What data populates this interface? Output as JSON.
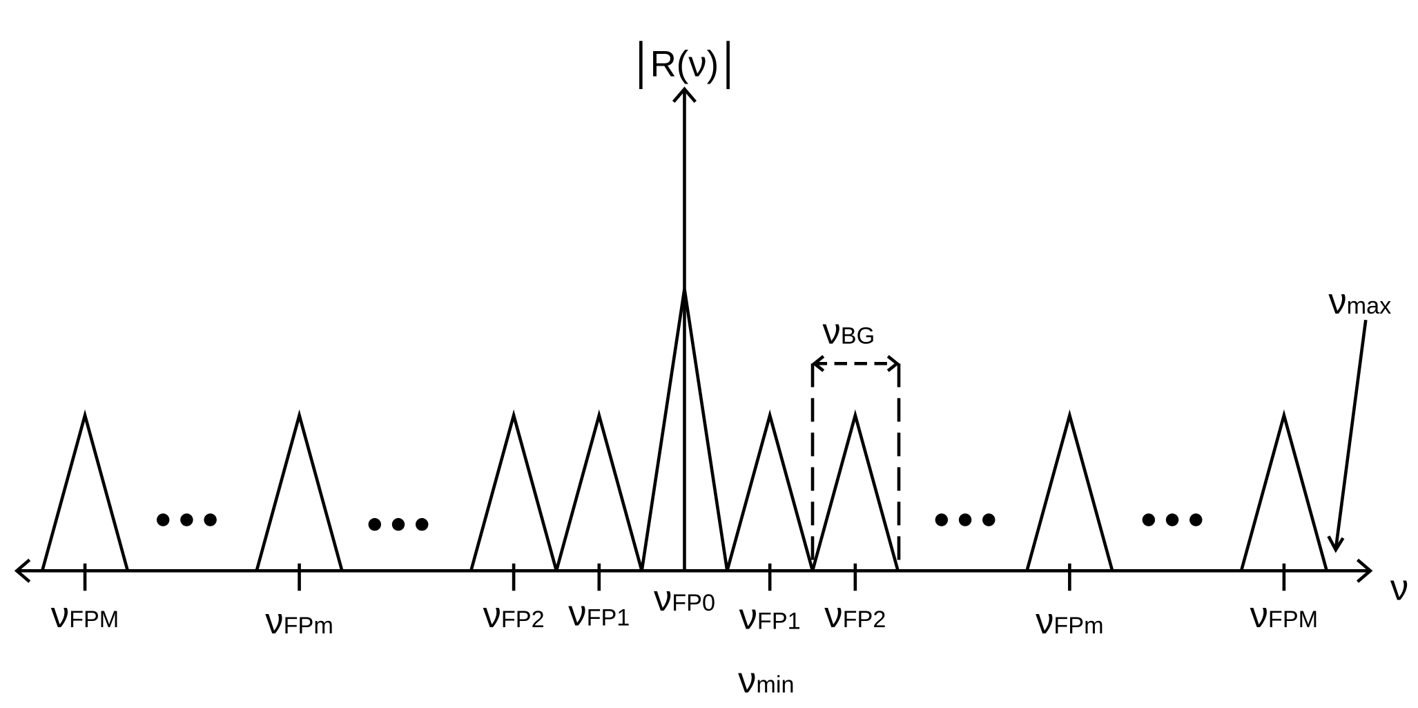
{
  "axis_y_label": "R(ν)",
  "axis_x_label": "ν",
  "peaks": [
    {
      "symbol": "ν",
      "sub": "FPM"
    },
    {
      "symbol": "ν",
      "sub": "FPm"
    },
    {
      "symbol": "ν",
      "sub": "FP2"
    },
    {
      "symbol": "ν",
      "sub": "FP1"
    },
    {
      "symbol": "ν",
      "sub": "FP0"
    },
    {
      "symbol": "ν",
      "sub": "FP1"
    },
    {
      "symbol": "ν",
      "sub": "FP2"
    },
    {
      "symbol": "ν",
      "sub": "FPm"
    },
    {
      "symbol": "ν",
      "sub": "FPM"
    }
  ],
  "nu_min": {
    "symbol": "ν",
    "sub": "min"
  },
  "nu_max": {
    "symbol": "ν",
    "sub": "max"
  },
  "nu_bg": {
    "symbol": "ν",
    "sub": "BG"
  }
}
